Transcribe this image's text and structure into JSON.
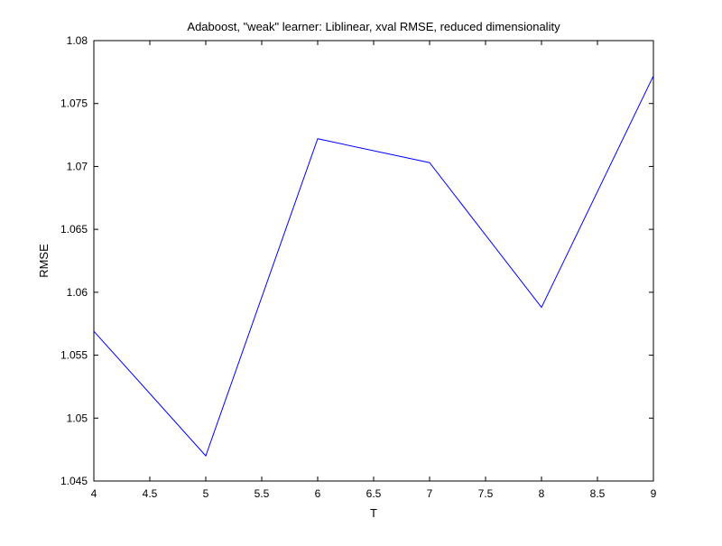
{
  "chart_data": {
    "type": "line",
    "title": "Adaboost, \"weak\" learner: Liblinear, xval RMSE, reduced dimensionality",
    "xlabel": "T",
    "ylabel": "RMSE",
    "xlim": [
      4,
      9
    ],
    "ylim": [
      1.045,
      1.08
    ],
    "xticks": [
      4,
      4.5,
      5,
      5.5,
      6,
      6.5,
      7,
      7.5,
      8,
      8.5,
      9
    ],
    "xtick_labels": [
      "4",
      "4.5",
      "5",
      "5.5",
      "6",
      "6.5",
      "7",
      "7.5",
      "8",
      "8.5",
      "9"
    ],
    "yticks": [
      1.045,
      1.05,
      1.055,
      1.06,
      1.065,
      1.07,
      1.075,
      1.08
    ],
    "ytick_labels": [
      "1.045",
      "1.05",
      "1.055",
      "1.06",
      "1.065",
      "1.07",
      "1.075",
      "1.08"
    ],
    "grid": false,
    "series": [
      {
        "x": [
          4,
          5,
          6,
          7,
          8,
          9
        ],
        "values": [
          1.0569,
          1.047,
          1.0722,
          1.0703,
          1.0588,
          1.0772
        ],
        "color": "#0000ff"
      }
    ]
  }
}
